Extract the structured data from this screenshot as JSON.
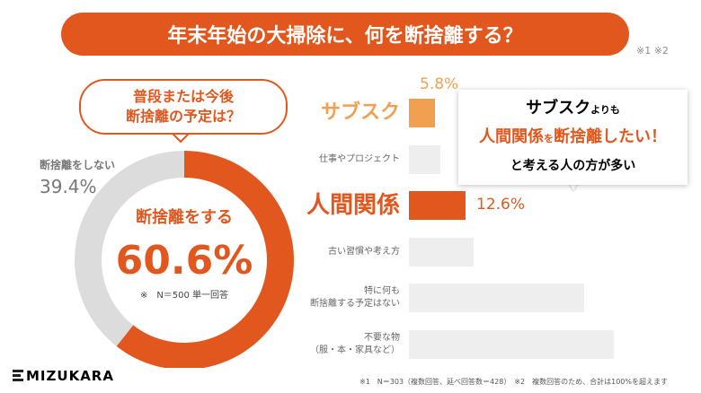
{
  "header": {
    "title": "年末年始の大掃除に、何を断捨離する？",
    "notes": "※1 ※2"
  },
  "question": [
    "普段または今後",
    "断捨離の予定は？"
  ],
  "callout": [
    [
      "サブスク",
      "よりも"
    ],
    [
      "人間関係",
      "を",
      "断捨離したい！"
    ],
    [
      "と考える人の方が多い"
    ]
  ],
  "chart_data": [
    {
      "type": "pie",
      "categories": [
        "断捨離をする",
        "断捨離をしない"
      ],
      "values": [
        60.6,
        39.4
      ],
      "value_labels": [
        "60.6%",
        "39.4%"
      ],
      "colors": [
        "#e2571e",
        "#dcdcdc"
      ],
      "note": "※　N＝500 単一回答"
    },
    {
      "type": "bar",
      "orientation": "horizontal",
      "categories": [
        "サブスク",
        "仕事やプロジェクト",
        "人間関係",
        "古い習慣や考え方",
        "特に何も\n断捨離する予定はない",
        "不要な物\n（服・本・家具など）"
      ],
      "values": [
        5.8,
        7,
        12.6,
        14.4,
        39,
        45.6
      ],
      "value_labels": [
        "5.8%",
        null,
        "12.6%",
        null,
        null,
        null
      ],
      "colors": [
        "#f0a050",
        "#eeeeee",
        "#e2571e",
        "#eeeeee",
        "#eeeeee",
        "#eeeeee"
      ]
    }
  ],
  "logo": "MIZUKARA",
  "footer": "※1　N＝303（複数回答、延べ回答数＝428）　※2　複数回答のため、合計は100%を超えます"
}
